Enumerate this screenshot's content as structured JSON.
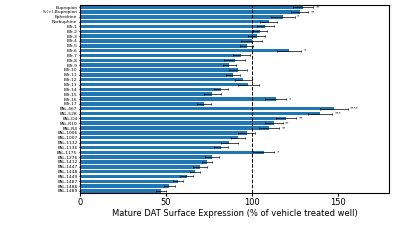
{
  "chart_data": {
    "type": "bar",
    "orientation": "horizontal",
    "categories": [
      "Bupropion",
      "S-(+)-Bupropion",
      "Ephedrine",
      "Norbuphine",
      "BTr-1",
      "BTr-2",
      "BTr-3",
      "BTr-4",
      "BTr-5",
      "BTr-6",
      "BTr-7",
      "BTr-8",
      "BTr-9",
      "BTr-10",
      "BTr-11",
      "BTr-12",
      "BTr-13",
      "BTr-14",
      "BTr-15",
      "BTr-16",
      "BTr-17",
      "PAL-467",
      "PAL-528",
      "PAL-D4",
      "PAL-R10",
      "PAL-R4",
      "PAL-1006",
      "PAL-1007",
      "PAL-1112",
      "PAL-1136",
      "PAL-1175",
      "PAL-1276",
      "PAL-1412",
      "PAL-1447",
      "PAL-1448",
      "PAL-1449",
      "PAL-1487",
      "PAL-1488",
      "PAL-1489"
    ],
    "values": [
      130,
      128,
      118,
      110,
      108,
      105,
      103,
      100,
      97,
      122,
      94,
      90,
      87,
      92,
      89,
      95,
      98,
      82,
      77,
      114,
      72,
      148,
      140,
      120,
      113,
      110,
      97,
      92,
      87,
      82,
      107,
      77,
      74,
      70,
      67,
      62,
      57,
      52,
      47
    ],
    "errors": [
      6,
      5,
      7,
      5,
      5,
      4,
      5,
      6,
      4,
      7,
      5,
      6,
      4,
      5,
      4,
      5,
      6,
      4,
      5,
      6,
      4,
      8,
      7,
      6,
      5,
      6,
      5,
      4,
      5,
      4,
      6,
      4,
      3,
      4,
      3,
      4,
      3,
      3,
      3
    ],
    "significance": [
      "**",
      "**",
      "*",
      null,
      null,
      null,
      null,
      null,
      null,
      "*",
      null,
      null,
      null,
      null,
      null,
      null,
      null,
      null,
      null,
      "*",
      null,
      "****",
      "***",
      "**",
      "**",
      "**",
      null,
      null,
      null,
      null,
      "*",
      null,
      null,
      null,
      null,
      null,
      null,
      null,
      null
    ],
    "vline": 100,
    "xlabel": "Mature DAT Surface Expression (% of vehicle treated well)",
    "xlim": [
      0,
      180
    ],
    "xticks": [
      0,
      50,
      100,
      150
    ]
  }
}
